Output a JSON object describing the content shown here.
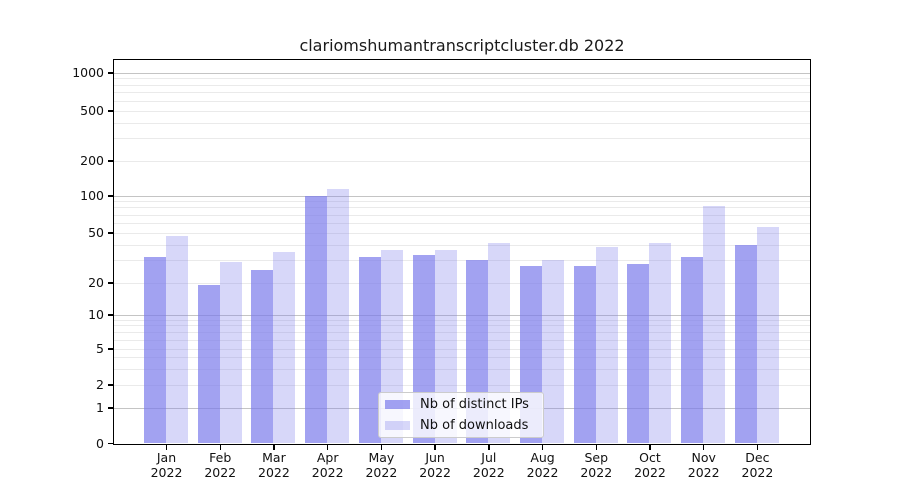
{
  "title": "clariomshumantranscriptcluster.db 2022",
  "legend": {
    "items": [
      {
        "label": "Nb of distinct IPs",
        "color": "rgba(122,122,235,0.7)"
      },
      {
        "label": "Nb of downloads",
        "color": "rgba(122,122,235,0.3)"
      }
    ]
  },
  "y_axis": {
    "tick_labels": [
      "0",
      "1",
      "2",
      "5",
      "10",
      "20",
      "50",
      "100",
      "200",
      "500",
      "1000"
    ]
  },
  "x_axis": {
    "months": [
      "Jan",
      "Feb",
      "Mar",
      "Apr",
      "May",
      "Jun",
      "Jul",
      "Aug",
      "Sep",
      "Oct",
      "Nov",
      "Dec"
    ],
    "year": "2022"
  },
  "colors": {
    "bar_distinct_ips": "rgba(122,122,235,0.7)",
    "bar_downloads": "rgba(122,122,235,0.3)",
    "grid_major": "#c4c4c4",
    "grid_minor": "#eaeaea",
    "axis": "#000000"
  },
  "chart_data": {
    "type": "bar",
    "title": "clariomshumantranscriptcluster.db 2022",
    "categories": [
      "Jan 2022",
      "Feb 2022",
      "Mar 2022",
      "Apr 2022",
      "May 2022",
      "Jun 2022",
      "Jul 2022",
      "Aug 2022",
      "Sep 2022",
      "Oct 2022",
      "Nov 2022",
      "Dec 2022"
    ],
    "series": [
      {
        "name": "Nb of distinct IPs",
        "color": "rgba(122,122,235,0.7)",
        "values": [
          32,
          19,
          25,
          100,
          32,
          33,
          30,
          27,
          27,
          28,
          32,
          40
        ]
      },
      {
        "name": "Nb of downloads",
        "color": "rgba(122,122,235,0.3)",
        "values": [
          47,
          29,
          35,
          113,
          36,
          36,
          41,
          30,
          38,
          41,
          82,
          55
        ]
      }
    ],
    "xlabel": "",
    "ylabel": "",
    "y_scale": "symlog",
    "y_ticks": [
      0,
      1,
      2,
      5,
      10,
      20,
      50,
      100,
      200,
      500,
      1000
    ],
    "ylim": [
      0,
      1300
    ],
    "grid": "horizontal major and log-minor",
    "legend_position": "lower center"
  }
}
